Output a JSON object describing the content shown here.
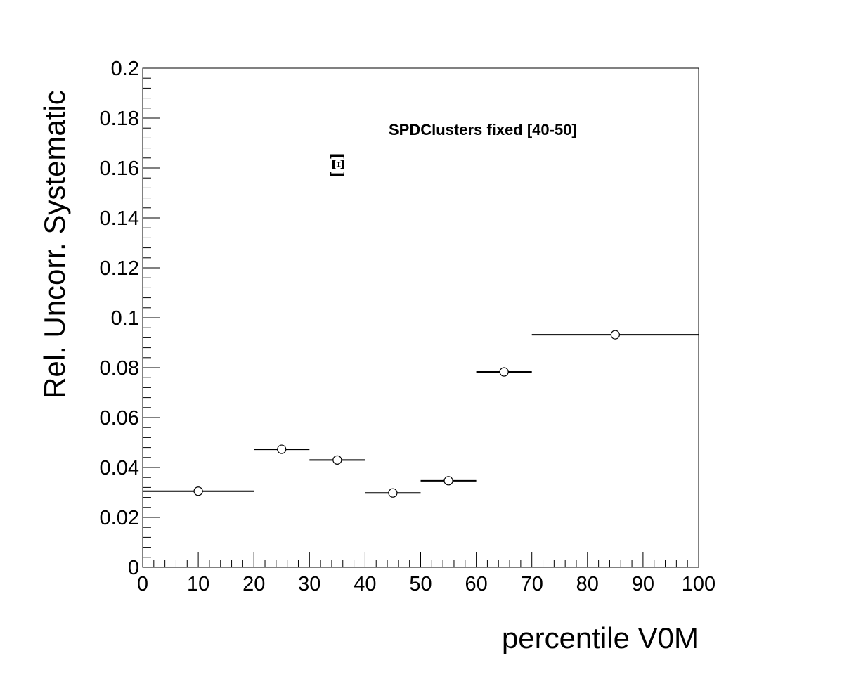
{
  "chart_data": {
    "type": "scatter",
    "title": "",
    "xlabel": "percentile V0M",
    "ylabel": "Rel. Uncorr. Systematic",
    "xlim": [
      0,
      100
    ],
    "ylim": [
      0,
      0.2
    ],
    "x_ticks": [
      "0",
      "10",
      "20",
      "30",
      "40",
      "50",
      "60",
      "70",
      "80",
      "90",
      "100"
    ],
    "y_ticks": [
      "0",
      "0.02",
      "0.04",
      "0.06",
      "0.08",
      "0.1",
      "0.12",
      "0.14",
      "0.16",
      "0.18",
      "0.2"
    ],
    "grid": false,
    "legend": "none",
    "annotation": "SPDClusters fixed [40-50]",
    "particle_symbol": "Ξ",
    "series": [
      {
        "marker": "open-circle",
        "points": [
          {
            "x": 10,
            "y": 0.0305,
            "x_low": 0,
            "x_high": 20
          },
          {
            "x": 25,
            "y": 0.0473,
            "x_low": 20,
            "x_high": 30
          },
          {
            "x": 35,
            "y": 0.043,
            "x_low": 30,
            "x_high": 40
          },
          {
            "x": 45,
            "y": 0.0298,
            "x_low": 40,
            "x_high": 50
          },
          {
            "x": 55,
            "y": 0.0347,
            "x_low": 50,
            "x_high": 60
          },
          {
            "x": 65,
            "y": 0.0783,
            "x_low": 60,
            "x_high": 70
          },
          {
            "x": 85,
            "y": 0.0932,
            "x_low": 70,
            "x_high": 100
          }
        ]
      }
    ]
  }
}
